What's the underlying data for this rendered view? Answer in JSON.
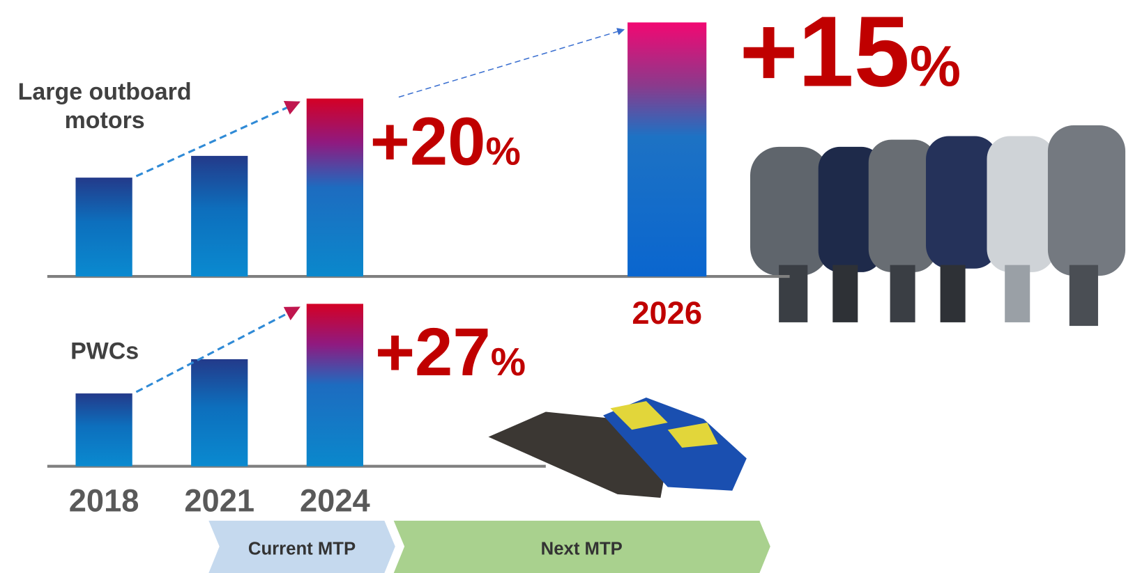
{
  "chart_data": {
    "type": "bar",
    "categories": [
      "2018",
      "2021",
      "2024",
      "2026"
    ],
    "series": [
      {
        "name": "Large outboard motors",
        "values": [
          100,
          122,
          180,
          257
        ]
      },
      {
        "name": "PWCs",
        "values": [
          100,
          147,
          223,
          null
        ]
      }
    ],
    "annotations": [
      {
        "number": "+20",
        "unit": "%"
      },
      {
        "number": "+27",
        "unit": "%"
      },
      {
        "number": "+15",
        "unit": "%"
      }
    ],
    "phases": [
      "Current MTP",
      "Next MTP"
    ]
  }
}
